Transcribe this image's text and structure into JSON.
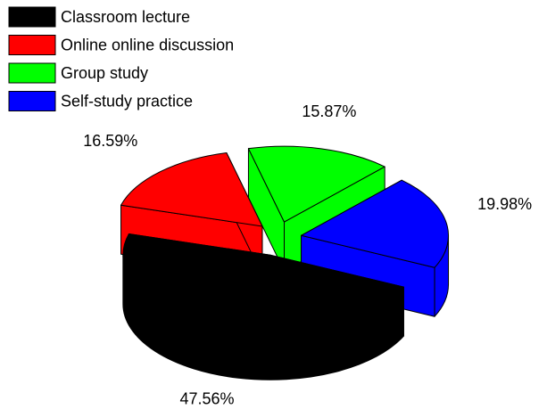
{
  "chart_data": {
    "type": "pie3d",
    "categories": [
      "Classroom lecture",
      "Online online discussion",
      "Group study",
      "Self-study practice"
    ],
    "values": [
      47.56,
      16.59,
      15.87,
      19.98
    ],
    "value_labels": [
      "47.56%",
      "16.59%",
      "15.87%",
      "19.98%"
    ],
    "colors": [
      "#000000",
      "#ff0000",
      "#00ff00",
      "#0000ff"
    ],
    "legend": "top-left"
  }
}
